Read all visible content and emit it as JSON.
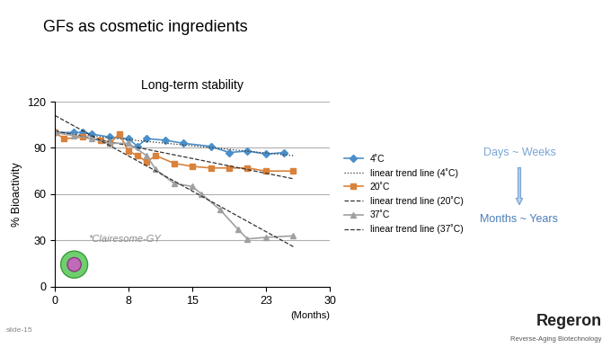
{
  "slide": {
    "title": "GFs as cosmetic ingredients",
    "footer": "slide-15",
    "logo": "Regeron",
    "tagline": "Reverse-Aging Biotechnology",
    "arrow_from": "Days ~ Weeks",
    "arrow_to": "Months ~ Years"
  },
  "chart_data": {
    "type": "line",
    "title": "Long-term stability",
    "y_label": "% Bioactivity",
    "x_label": "(Months)",
    "annotations": [
      "*Clairesome-GY"
    ],
    "xlim": [
      0,
      30
    ],
    "xticks": [
      0,
      8,
      15,
      23,
      30
    ],
    "ylim": [
      0,
      120
    ],
    "yticks": [
      0,
      30,
      60,
      90,
      120
    ],
    "grid": true,
    "legend": "right",
    "series": [
      {
        "name": "4˚C",
        "type": "line",
        "color": "#4a8fc9",
        "marker": "diamond",
        "line_style": "solid",
        "x": [
          0,
          2,
          3,
          4,
          6,
          8,
          9,
          10,
          12,
          14,
          17,
          19,
          21,
          23,
          25
        ],
        "values": [
          100,
          100,
          100,
          99,
          97,
          96,
          91,
          96,
          95,
          93,
          91,
          87,
          88,
          86,
          87
        ]
      },
      {
        "name": "linear trend line (4˚C)",
        "type": "line",
        "color": "#333333",
        "marker": "none",
        "line_style": "dotted",
        "x": [
          0,
          26
        ],
        "values": [
          100,
          85
        ]
      },
      {
        "name": "20˚C",
        "type": "line",
        "color": "#d9823b",
        "marker": "square",
        "line_style": "solid",
        "x": [
          0,
          1,
          3,
          5,
          6,
          7,
          8,
          9,
          10,
          11,
          13,
          15,
          17,
          19,
          21,
          23,
          26
        ],
        "values": [
          100,
          96,
          97,
          95,
          93,
          99,
          88,
          85,
          81,
          85,
          80,
          78,
          77,
          77,
          77,
          75,
          75
        ]
      },
      {
        "name": "linear trend line (20˚C)",
        "type": "line",
        "color": "#333333",
        "marker": "none",
        "line_style": "dashed",
        "x": [
          0,
          26
        ],
        "values": [
          101,
          70
        ]
      },
      {
        "name": "37˚C",
        "type": "line",
        "color": "#a0a0a0",
        "marker": "triangle",
        "line_style": "solid",
        "x": [
          0,
          2,
          4,
          6,
          8,
          10,
          11,
          13,
          15,
          16,
          18,
          20,
          21,
          23,
          26
        ],
        "values": [
          100,
          98,
          96,
          93,
          93,
          85,
          76,
          67,
          65,
          60,
          50,
          37,
          31,
          32,
          33
        ]
      },
      {
        "name": "linear trend line (37˚C)",
        "type": "line",
        "color": "#333333",
        "marker": "none",
        "line_style": "dashed",
        "x": [
          0,
          26
        ],
        "values": [
          111,
          26
        ]
      }
    ]
  }
}
